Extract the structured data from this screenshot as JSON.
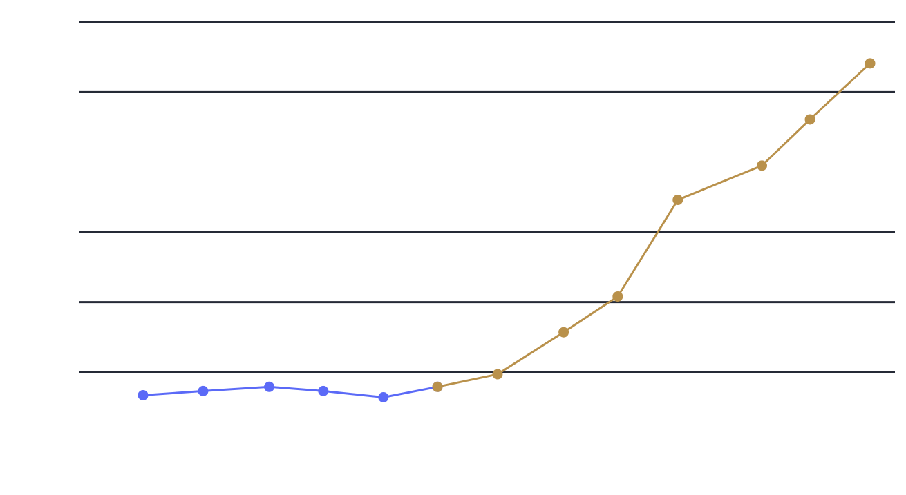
{
  "chart_data": {
    "type": "line",
    "title": "",
    "xlabel": "",
    "ylabel": "",
    "grid": true,
    "gridlines": [
      0,
      1,
      2,
      4,
      5
    ],
    "ylim": [
      -1,
      5
    ],
    "series": [
      {
        "color": "#5b6af7",
        "points": [
          {
            "x": 1,
            "y": -0.33
          },
          {
            "x": 2,
            "y": -0.27
          },
          {
            "x": 3.1,
            "y": -0.21
          },
          {
            "x": 4,
            "y": -0.27
          },
          {
            "x": 5,
            "y": -0.36
          },
          {
            "x": 5.9,
            "y": -0.21
          }
        ]
      },
      {
        "color": "#b9914b",
        "points": [
          {
            "x": 5.9,
            "y": -0.21
          },
          {
            "x": 6.9,
            "y": -0.03
          },
          {
            "x": 8,
            "y": 0.57
          },
          {
            "x": 8.9,
            "y": 1.08
          },
          {
            "x": 9.9,
            "y": 2.46
          },
          {
            "x": 11.3,
            "y": 2.95
          },
          {
            "x": 12.1,
            "y": 3.61
          },
          {
            "x": 13.1,
            "y": 4.41
          }
        ]
      }
    ]
  }
}
